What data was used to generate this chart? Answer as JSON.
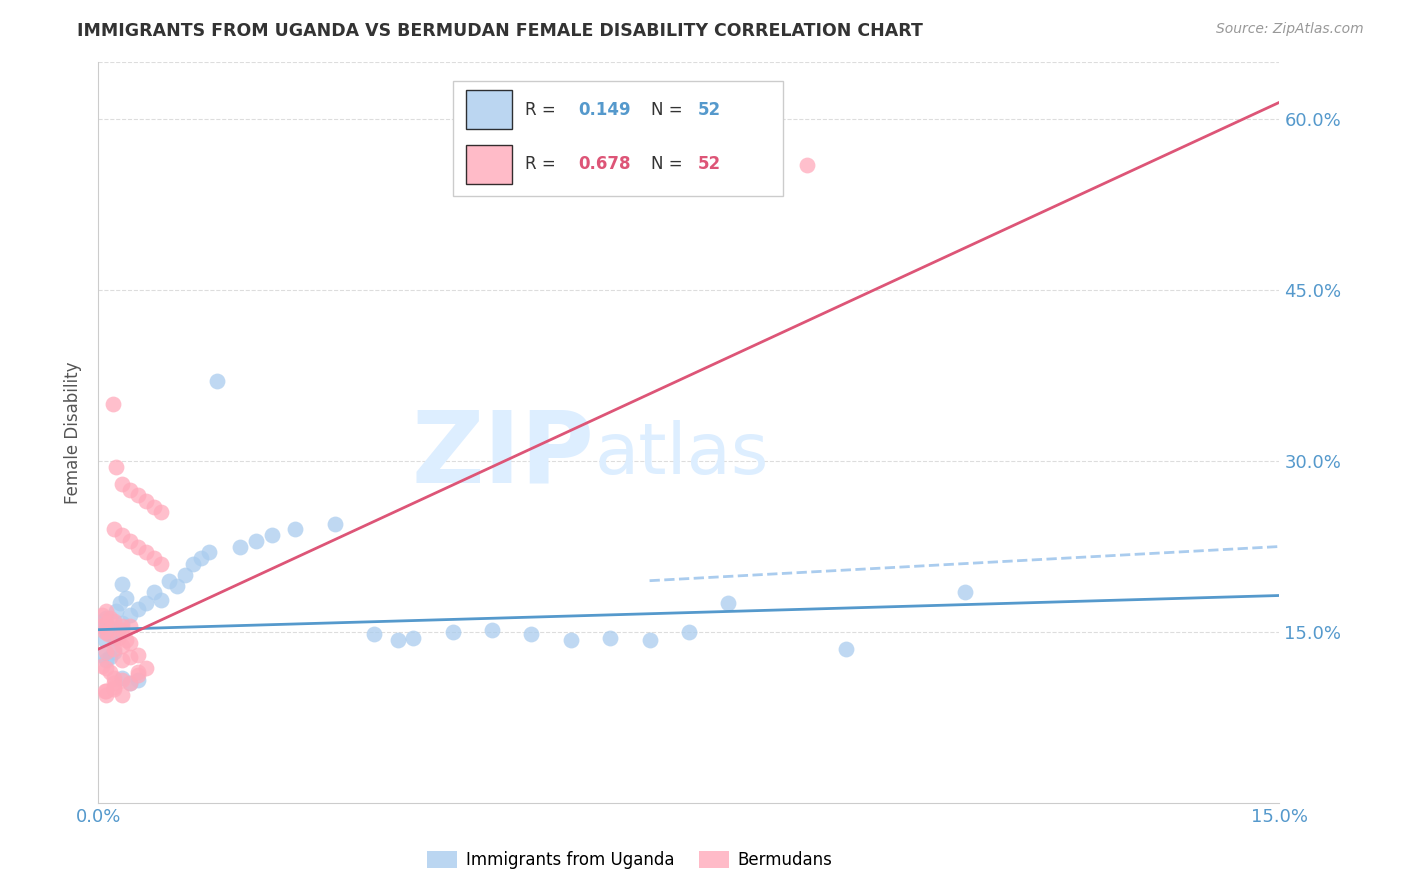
{
  "title": "IMMIGRANTS FROM UGANDA VS BERMUDAN FEMALE DISABILITY CORRELATION CHART",
  "source": "Source: ZipAtlas.com",
  "ylabel": "Female Disability",
  "xlim": [
    0.0,
    0.15
  ],
  "ylim": [
    0.0,
    0.65
  ],
  "ytick_positions": [
    0.15,
    0.3,
    0.45,
    0.6
  ],
  "ytick_labels": [
    "15.0%",
    "30.0%",
    "45.0%",
    "60.0%"
  ],
  "xtick_positions": [
    0.0,
    0.15
  ],
  "xtick_labels": [
    "0.0%",
    "15.0%"
  ],
  "scatter_blue_color": "#AACCEE",
  "scatter_pink_color": "#FFAABB",
  "line_blue_color": "#5599CC",
  "line_pink_color": "#DD5577",
  "dashed_line_color": "#AACCEE",
  "watermark_zip": "ZIP",
  "watermark_atlas": "atlas",
  "watermark_color": "#DDEEFF",
  "tick_color": "#5599CC",
  "grid_color": "#DDDDDD",
  "ylabel_color": "#555555",
  "title_color": "#333333",
  "source_color": "#999999",
  "blue_line_x": [
    0.0,
    0.15
  ],
  "blue_line_y": [
    0.152,
    0.182
  ],
  "pink_line_x": [
    0.0,
    0.15
  ],
  "pink_line_y": [
    0.135,
    0.615
  ],
  "dashed_line_x": [
    0.07,
    0.15
  ],
  "dashed_line_y": [
    0.195,
    0.225
  ],
  "blue_points_x": [
    0.0005,
    0.001,
    0.0015,
    0.002,
    0.0025,
    0.003,
    0.0005,
    0.001,
    0.0008,
    0.0012,
    0.0018,
    0.0022,
    0.0028,
    0.0035,
    0.004,
    0.003,
    0.005,
    0.006,
    0.007,
    0.008,
    0.009,
    0.01,
    0.011,
    0.012,
    0.013,
    0.015,
    0.014,
    0.018,
    0.02,
    0.022,
    0.025,
    0.03,
    0.035,
    0.038,
    0.04,
    0.045,
    0.05,
    0.055,
    0.06,
    0.065,
    0.07,
    0.075,
    0.08,
    0.095,
    0.11,
    0.0005,
    0.001,
    0.0015,
    0.002,
    0.003,
    0.004,
    0.005
  ],
  "blue_points_y": [
    0.155,
    0.15,
    0.148,
    0.145,
    0.152,
    0.158,
    0.16,
    0.162,
    0.143,
    0.155,
    0.148,
    0.168,
    0.175,
    0.18,
    0.165,
    0.192,
    0.17,
    0.175,
    0.185,
    0.178,
    0.195,
    0.19,
    0.2,
    0.21,
    0.215,
    0.37,
    0.22,
    0.225,
    0.23,
    0.235,
    0.24,
    0.245,
    0.148,
    0.143,
    0.145,
    0.15,
    0.152,
    0.148,
    0.143,
    0.145,
    0.143,
    0.15,
    0.175,
    0.135,
    0.185,
    0.13,
    0.125,
    0.128,
    0.132,
    0.11,
    0.105,
    0.108
  ],
  "pink_points_x": [
    0.0005,
    0.001,
    0.0008,
    0.0012,
    0.002,
    0.0015,
    0.0025,
    0.003,
    0.0035,
    0.004,
    0.0005,
    0.001,
    0.0018,
    0.0022,
    0.003,
    0.004,
    0.005,
    0.006,
    0.007,
    0.008,
    0.002,
    0.003,
    0.004,
    0.005,
    0.006,
    0.007,
    0.008,
    0.0005,
    0.001,
    0.0015,
    0.002,
    0.003,
    0.004,
    0.005,
    0.0008,
    0.001,
    0.002,
    0.003,
    0.004,
    0.005,
    0.001,
    0.002,
    0.003,
    0.004,
    0.005,
    0.006,
    0.002,
    0.003,
    0.001,
    0.002,
    0.09,
    0.003
  ],
  "pink_points_y": [
    0.155,
    0.158,
    0.15,
    0.148,
    0.16,
    0.162,
    0.145,
    0.152,
    0.143,
    0.155,
    0.165,
    0.168,
    0.35,
    0.295,
    0.28,
    0.275,
    0.27,
    0.265,
    0.26,
    0.255,
    0.24,
    0.235,
    0.23,
    0.225,
    0.22,
    0.215,
    0.21,
    0.12,
    0.118,
    0.115,
    0.11,
    0.108,
    0.105,
    0.112,
    0.098,
    0.095,
    0.102,
    0.125,
    0.128,
    0.13,
    0.132,
    0.135,
    0.138,
    0.14,
    0.115,
    0.118,
    0.105,
    0.095,
    0.098,
    0.1,
    0.56,
    0.155
  ]
}
